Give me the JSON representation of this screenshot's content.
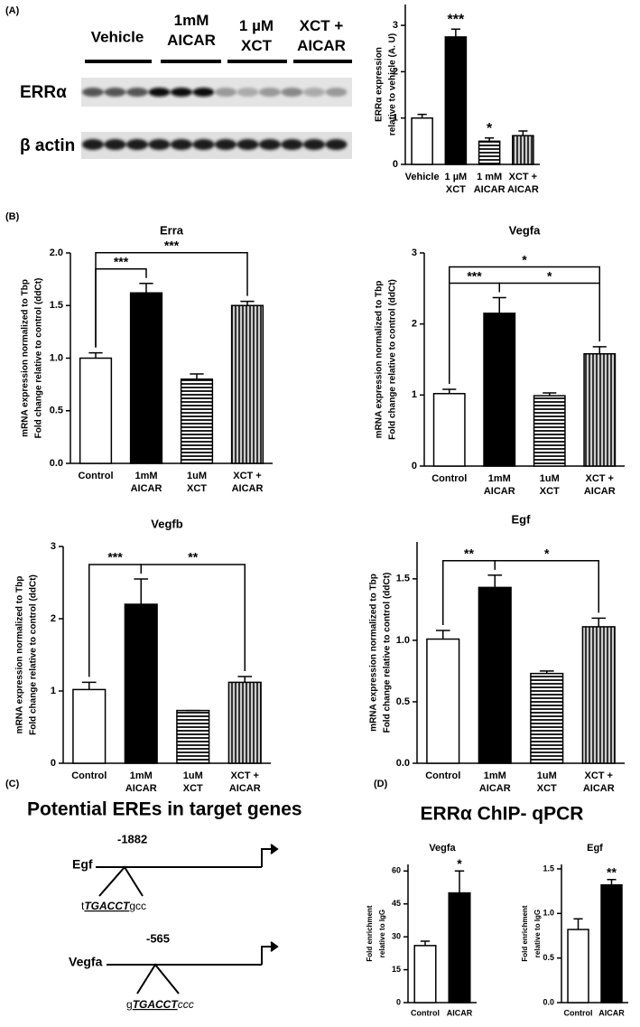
{
  "panels": {
    "a": "(A)",
    "b": "(B)",
    "c": "(C)",
    "d": "(D)"
  },
  "blot": {
    "lanes": [
      "Vehicle",
      "1mM AICAR",
      "1 µM XCT",
      "XCT + AICAR"
    ],
    "rows": [
      "ERRα",
      "β actin"
    ]
  },
  "diagram": {
    "title": "Potential EREs in target genes",
    "genes": [
      {
        "name": "Egf",
        "position": -1882,
        "sequence": {
          "prefix": "t",
          "motif": "TGACCT",
          "suffix": "gcc"
        }
      },
      {
        "name": "Vegfa",
        "position": -565,
        "sequence": {
          "prefix": "g",
          "motif": "TGACCT",
          "suffix": "ccc"
        }
      }
    ]
  },
  "chip_title": "ERRα ChIP- qPCR",
  "chart_data": [
    {
      "type": "bar",
      "ylabel": [
        "ERRα expression",
        "relative to vehicle (A. U)"
      ],
      "categories": [
        "Vehicle",
        "1 µM XCT",
        "1 mM AICAR",
        "XCT + AICAR"
      ],
      "values": [
        1.0,
        2.75,
        0.5,
        0.62
      ],
      "errors": [
        0.08,
        0.17,
        0.07,
        0.1
      ],
      "bar_styles": [
        "white",
        "black",
        "horizontal-stripes",
        "vertical-stripes"
      ],
      "ylim": [
        0,
        3.45
      ],
      "yticks": [
        0,
        1,
        2,
        3
      ],
      "marks": [
        {
          "category": "1 µM XCT",
          "label": "***"
        },
        {
          "category": "1 mM AICAR",
          "label": "*"
        }
      ]
    },
    {
      "type": "bar",
      "title": "Erra",
      "ylabel": [
        "mRNA expression normalized to Tbp",
        "Fold change relative to control (ddCt)"
      ],
      "categories": [
        "Control",
        "1mM AICAR",
        "1uM XCT",
        "XCT + AICAR"
      ],
      "values": [
        1.0,
        1.62,
        0.8,
        1.5
      ],
      "errors": [
        0.05,
        0.09,
        0.05,
        0.04
      ],
      "bar_styles": [
        "white",
        "black",
        "horizontal-stripes",
        "vertical-stripes"
      ],
      "ylim": [
        0,
        2.0
      ],
      "yticks": [
        {
          "value": 0,
          "label": "0.0"
        },
        0.5,
        {
          "value": 1,
          "label": "1.0"
        },
        1.5,
        {
          "value": 2,
          "label": "2.0"
        }
      ],
      "brackets": [
        {
          "from": "Control",
          "to": "1mM AICAR",
          "label": "***"
        },
        {
          "from": "Control",
          "to": "XCT + AICAR",
          "label": "***"
        }
      ]
    },
    {
      "type": "bar",
      "title": "Vegfa",
      "ylabel": [
        "mRNA expression normalized to Tbp",
        "Fold change relative to control (ddCt)"
      ],
      "categories": [
        "Control",
        "1mM AICAR",
        "1uM XCT",
        "XCT + AICAR"
      ],
      "values": [
        1.02,
        2.15,
        0.99,
        1.58
      ],
      "errors": [
        0.06,
        0.22,
        0.04,
        0.1
      ],
      "bar_styles": [
        "white",
        "black",
        "horizontal-stripes",
        "vertical-stripes"
      ],
      "ylim": [
        0,
        3
      ],
      "yticks": [
        0,
        1,
        2,
        3
      ],
      "brackets": [
        {
          "from": "Control",
          "to": "1mM AICAR",
          "label": "***"
        },
        {
          "from": "1mM AICAR",
          "to": "XCT + AICAR",
          "label": "*"
        },
        {
          "from": "Control",
          "to": "XCT + AICAR",
          "label": "*"
        }
      ]
    },
    {
      "type": "bar",
      "title": "Vegfb",
      "ylabel": [
        "mRNA expression normalized to Tbp",
        "Fold change relative to control (ddCt)"
      ],
      "categories": [
        "Control",
        "1mM AICAR",
        "1uM XCT",
        "XCT + AICAR"
      ],
      "values": [
        1.02,
        2.2,
        0.73,
        1.12
      ],
      "errors": [
        0.1,
        0.35,
        0,
        0.08
      ],
      "bar_styles": [
        "white",
        "black",
        "horizontal-stripes",
        "vertical-stripes"
      ],
      "ylim": [
        0,
        3
      ],
      "yticks": [
        0,
        1,
        2,
        3
      ],
      "brackets": [
        {
          "from": "Control",
          "to": "1mM AICAR",
          "label": "***"
        },
        {
          "from": "1mM AICAR",
          "to": "XCT + AICAR",
          "label": "**"
        }
      ]
    },
    {
      "type": "bar",
      "title": "Egf",
      "ylabel": [
        "mRNA expression normalized to Tbp",
        "Fold change relative to control (ddCt)"
      ],
      "categories": [
        "Control",
        "1mM AICAR",
        "1uM XCT",
        "XCT + AICAR"
      ],
      "values": [
        1.01,
        1.43,
        0.73,
        1.11
      ],
      "errors": [
        0.07,
        0.1,
        0.02,
        0.07
      ],
      "bar_styles": [
        "white",
        "black",
        "horizontal-stripes",
        "vertical-stripes"
      ],
      "ylim": [
        0,
        1.8
      ],
      "yticks": [
        {
          "value": 0,
          "label": "0.0"
        },
        0.5,
        {
          "value": 1,
          "label": "1.0"
        },
        1.5
      ],
      "brackets": [
        {
          "from": "Control",
          "to": "1mM AICAR",
          "label": "**"
        },
        {
          "from": "1mM AICAR",
          "to": "XCT + AICAR",
          "label": "*"
        }
      ]
    },
    {
      "type": "bar",
      "title": "Vegfa",
      "ylabel": [
        "Fold enrichment",
        "relative to IgG"
      ],
      "categories": [
        "Control",
        "AICAR"
      ],
      "values": [
        26,
        50
      ],
      "errors": [
        2,
        10
      ],
      "bar_styles": [
        "white",
        "black"
      ],
      "ylim": [
        0,
        63
      ],
      "yticks": [
        0,
        15,
        30,
        45,
        60
      ],
      "marks": [
        {
          "category": "AICAR",
          "label": "*"
        }
      ]
    },
    {
      "type": "bar",
      "title": "Egf",
      "ylabel": [
        "Fold enrichment",
        "relative to IgG"
      ],
      "categories": [
        "Control",
        "AICAR"
      ],
      "values": [
        0.82,
        1.32
      ],
      "errors": [
        0.12,
        0.06
      ],
      "bar_styles": [
        "white",
        "black"
      ],
      "ylim": [
        0,
        1.55
      ],
      "yticks": [
        {
          "value": 0,
          "label": "0.0"
        },
        0.5,
        {
          "value": 1,
          "label": "1.0"
        },
        1.5
      ],
      "marks": [
        {
          "category": "AICAR",
          "label": "**"
        }
      ]
    }
  ]
}
